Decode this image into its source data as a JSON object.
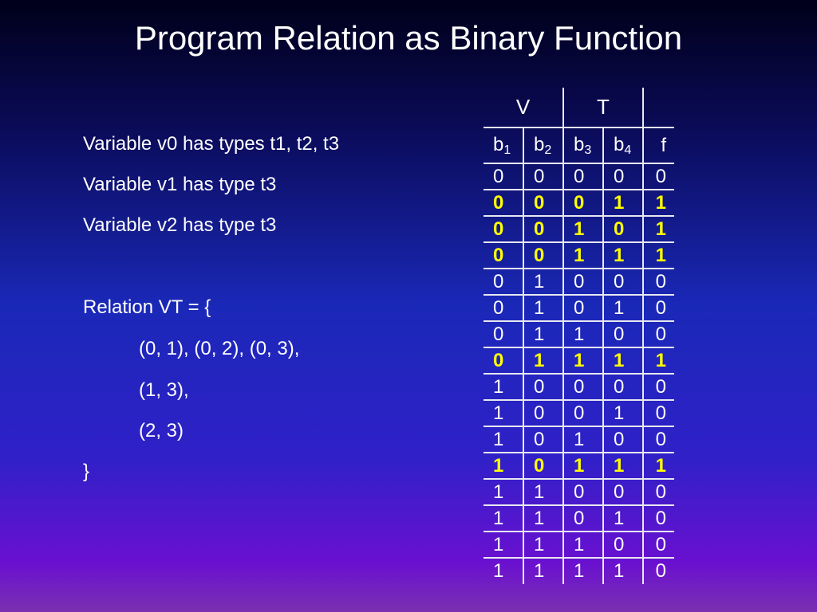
{
  "title": "Program Relation as Binary Function",
  "left_text": {
    "lines": [
      "Variable v0 has types t1, t2, t3",
      "Variable v1 has type t3",
      "Variable v2 has type t3"
    ],
    "relation_open": "Relation VT = {",
    "pairs": [
      "(0, 1), (0, 2), (0, 3),",
      "(1, 3),",
      "(2, 3)"
    ],
    "relation_close": "}"
  },
  "table": {
    "group_headers": [
      "V",
      "T"
    ],
    "columns": [
      {
        "base": "b",
        "sub": "1"
      },
      {
        "base": "b",
        "sub": "2"
      },
      {
        "base": "b",
        "sub": "3"
      },
      {
        "base": "b",
        "sub": "4"
      },
      {
        "base": "f",
        "sub": ""
      }
    ],
    "highlight_color": "#ffff00",
    "rows": [
      {
        "v": [
          "0",
          "0",
          "0",
          "0",
          "0"
        ],
        "hl": false
      },
      {
        "v": [
          "0",
          "0",
          "0",
          "1",
          "1"
        ],
        "hl": true
      },
      {
        "v": [
          "0",
          "0",
          "1",
          "0",
          "1"
        ],
        "hl": true
      },
      {
        "v": [
          "0",
          "0",
          "1",
          "1",
          "1"
        ],
        "hl": true
      },
      {
        "v": [
          "0",
          "1",
          "0",
          "0",
          "0"
        ],
        "hl": false
      },
      {
        "v": [
          "0",
          "1",
          "0",
          "1",
          "0"
        ],
        "hl": false
      },
      {
        "v": [
          "0",
          "1",
          "1",
          "0",
          "0"
        ],
        "hl": false
      },
      {
        "v": [
          "0",
          "1",
          "1",
          "1",
          "1"
        ],
        "hl": true
      },
      {
        "v": [
          "1",
          "0",
          "0",
          "0",
          "0"
        ],
        "hl": false
      },
      {
        "v": [
          "1",
          "0",
          "0",
          "1",
          "0"
        ],
        "hl": false
      },
      {
        "v": [
          "1",
          "0",
          "1",
          "0",
          "0"
        ],
        "hl": false
      },
      {
        "v": [
          "1",
          "0",
          "1",
          "1",
          "1"
        ],
        "hl": true
      },
      {
        "v": [
          "1",
          "1",
          "0",
          "0",
          "0"
        ],
        "hl": false
      },
      {
        "v": [
          "1",
          "1",
          "0",
          "1",
          "0"
        ],
        "hl": false
      },
      {
        "v": [
          "1",
          "1",
          "1",
          "0",
          "0"
        ],
        "hl": false
      },
      {
        "v": [
          "1",
          "1",
          "1",
          "1",
          "0"
        ],
        "hl": false
      }
    ]
  }
}
